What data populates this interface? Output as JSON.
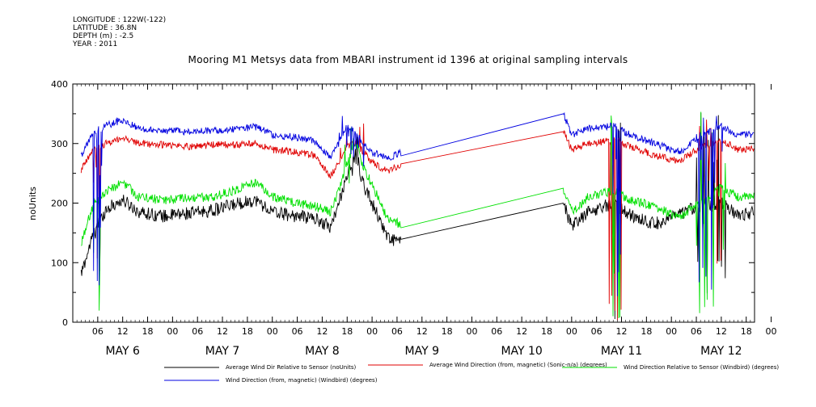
{
  "header": {
    "longitude": "LONGITUDE : 122W(-122)",
    "latitude": "LATITUDE : 36.8N",
    "depth": "DEPTH (m) : -2.5",
    "year": "YEAR : 2011"
  },
  "chart_data": {
    "type": "line",
    "title": "Mooring M1 Metsys data from MBARI instrument id 1396 at original sampling intervals",
    "ylabel": "noUnits",
    "xlabel": "",
    "ylim": [
      0,
      400
    ],
    "xlim_hours": [
      0,
      164
    ],
    "yticks": [
      "0",
      "100",
      "200",
      "300",
      "400"
    ],
    "xtick_labels": [
      "06",
      "12",
      "18",
      "00",
      "06",
      "12",
      "18",
      "00",
      "06",
      "12",
      "18",
      "00",
      "06",
      "12",
      "18",
      "00",
      "06",
      "12",
      "18",
      "00",
      "06",
      "12",
      "18",
      "00",
      "06",
      "12",
      "18",
      "00"
    ],
    "day_labels": [
      "MAY  6",
      "MAY  7",
      "MAY  8",
      "MAY  9",
      "MAY 10",
      "MAY 11",
      "MAY 12"
    ],
    "gap": [
      79,
      118
    ],
    "series": [
      {
        "name": "Average Wind Dir Relative to Sensor (noUnits)",
        "color": "#000000",
        "baseline": [
          [
            2,
            80
          ],
          [
            5,
            150
          ],
          [
            8,
            190
          ],
          [
            12,
            205
          ],
          [
            16,
            185
          ],
          [
            22,
            178
          ],
          [
            28,
            183
          ],
          [
            34,
            188
          ],
          [
            40,
            200
          ],
          [
            44,
            205
          ],
          [
            48,
            185
          ],
          [
            54,
            178
          ],
          [
            58,
            175
          ],
          [
            62,
            160
          ],
          [
            64,
            200
          ],
          [
            66,
            250
          ],
          [
            68,
            280
          ],
          [
            70,
            230
          ],
          [
            72,
            200
          ],
          [
            74,
            170
          ],
          [
            76,
            140
          ],
          [
            79,
            135
          ],
          [
            118,
            200
          ],
          [
            120,
            160
          ],
          [
            124,
            185
          ],
          [
            130,
            200
          ],
          [
            134,
            180
          ],
          [
            140,
            165
          ],
          [
            146,
            180
          ],
          [
            150,
            195
          ],
          [
            156,
            200
          ],
          [
            160,
            180
          ],
          [
            164,
            185
          ]
        ]
      },
      {
        "name": "Average Wind Direction (from, magnetic) (Sonic-n/a) (degrees)",
        "color": "#e00000",
        "baseline": [
          [
            2,
            255
          ],
          [
            5,
            290
          ],
          [
            8,
            300
          ],
          [
            12,
            310
          ],
          [
            16,
            300
          ],
          [
            22,
            298
          ],
          [
            28,
            295
          ],
          [
            34,
            298
          ],
          [
            40,
            298
          ],
          [
            44,
            300
          ],
          [
            48,
            290
          ],
          [
            54,
            285
          ],
          [
            58,
            280
          ],
          [
            62,
            245
          ],
          [
            64,
            270
          ],
          [
            66,
            295
          ],
          [
            68,
            300
          ],
          [
            70,
            285
          ],
          [
            72,
            270
          ],
          [
            74,
            260
          ],
          [
            76,
            255
          ],
          [
            79,
            265
          ],
          [
            118,
            320
          ],
          [
            120,
            290
          ],
          [
            124,
            300
          ],
          [
            130,
            305
          ],
          [
            134,
            295
          ],
          [
            140,
            280
          ],
          [
            146,
            270
          ],
          [
            150,
            290
          ],
          [
            156,
            305
          ],
          [
            160,
            290
          ],
          [
            164,
            290
          ]
        ]
      },
      {
        "name": "Wind Direction Relative to Sensor (Windbird) (degrees)",
        "color": "#00e000",
        "baseline": [
          [
            2,
            130
          ],
          [
            5,
            200
          ],
          [
            8,
            220
          ],
          [
            12,
            235
          ],
          [
            16,
            210
          ],
          [
            22,
            205
          ],
          [
            28,
            208
          ],
          [
            34,
            210
          ],
          [
            40,
            225
          ],
          [
            44,
            235
          ],
          [
            48,
            210
          ],
          [
            54,
            200
          ],
          [
            58,
            195
          ],
          [
            62,
            185
          ],
          [
            64,
            220
          ],
          [
            66,
            270
          ],
          [
            68,
            300
          ],
          [
            70,
            260
          ],
          [
            72,
            230
          ],
          [
            74,
            200
          ],
          [
            76,
            170
          ],
          [
            79,
            165
          ],
          [
            118,
            225
          ],
          [
            120,
            185
          ],
          [
            124,
            210
          ],
          [
            130,
            220
          ],
          [
            134,
            205
          ],
          [
            140,
            195
          ],
          [
            146,
            175
          ],
          [
            150,
            200
          ],
          [
            156,
            225
          ],
          [
            160,
            210
          ],
          [
            164,
            210
          ]
        ]
      },
      {
        "name": "Wind Direction (from, magnetic) (Windbird) (degrees)",
        "color": "#0000e0",
        "baseline": [
          [
            2,
            280
          ],
          [
            5,
            320
          ],
          [
            8,
            330
          ],
          [
            12,
            340
          ],
          [
            16,
            325
          ],
          [
            22,
            322
          ],
          [
            28,
            320
          ],
          [
            34,
            322
          ],
          [
            40,
            325
          ],
          [
            44,
            328
          ],
          [
            48,
            315
          ],
          [
            54,
            310
          ],
          [
            58,
            305
          ],
          [
            62,
            275
          ],
          [
            64,
            300
          ],
          [
            66,
            330
          ],
          [
            68,
            320
          ],
          [
            70,
            300
          ],
          [
            72,
            285
          ],
          [
            74,
            280
          ],
          [
            76,
            275
          ],
          [
            79,
            285
          ],
          [
            118,
            350
          ],
          [
            120,
            315
          ],
          [
            124,
            325
          ],
          [
            130,
            330
          ],
          [
            134,
            315
          ],
          [
            140,
            300
          ],
          [
            146,
            285
          ],
          [
            150,
            310
          ],
          [
            156,
            330
          ],
          [
            160,
            315
          ],
          [
            164,
            315
          ]
        ]
      }
    ]
  }
}
